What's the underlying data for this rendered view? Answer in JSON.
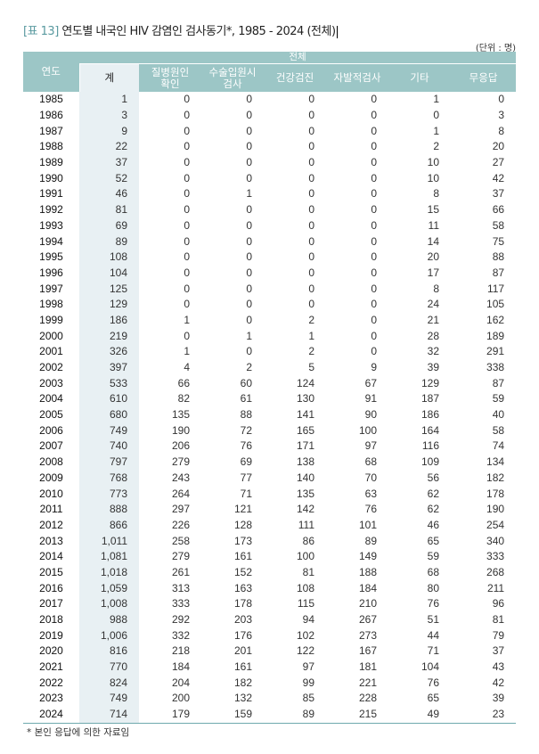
{
  "title": {
    "tag": "[표 13]",
    "text": "연도별 내국인 HIV 감염인 검사동기*, 1985 - 2024 (전체)"
  },
  "unit": "(단위 : 명)",
  "header": {
    "year": "연도",
    "group": "전체",
    "columns": [
      "계",
      "질병원인\n확인",
      "수술입원시\n검사",
      "건강검진",
      "자발적검사",
      "기타",
      "무응답"
    ]
  },
  "rows": [
    [
      "1985",
      "1",
      "0",
      "0",
      "0",
      "0",
      "1",
      "0"
    ],
    [
      "1986",
      "3",
      "0",
      "0",
      "0",
      "0",
      "0",
      "3"
    ],
    [
      "1987",
      "9",
      "0",
      "0",
      "0",
      "0",
      "1",
      "8"
    ],
    [
      "1988",
      "22",
      "0",
      "0",
      "0",
      "0",
      "2",
      "20"
    ],
    [
      "1989",
      "37",
      "0",
      "0",
      "0",
      "0",
      "10",
      "27"
    ],
    [
      "1990",
      "52",
      "0",
      "0",
      "0",
      "0",
      "10",
      "42"
    ],
    [
      "1991",
      "46",
      "0",
      "1",
      "0",
      "0",
      "8",
      "37"
    ],
    [
      "1992",
      "81",
      "0",
      "0",
      "0",
      "0",
      "15",
      "66"
    ],
    [
      "1993",
      "69",
      "0",
      "0",
      "0",
      "0",
      "11",
      "58"
    ],
    [
      "1994",
      "89",
      "0",
      "0",
      "0",
      "0",
      "14",
      "75"
    ],
    [
      "1995",
      "108",
      "0",
      "0",
      "0",
      "0",
      "20",
      "88"
    ],
    [
      "1996",
      "104",
      "0",
      "0",
      "0",
      "0",
      "17",
      "87"
    ],
    [
      "1997",
      "125",
      "0",
      "0",
      "0",
      "0",
      "8",
      "117"
    ],
    [
      "1998",
      "129",
      "0",
      "0",
      "0",
      "0",
      "24",
      "105"
    ],
    [
      "1999",
      "186",
      "1",
      "0",
      "2",
      "0",
      "21",
      "162"
    ],
    [
      "2000",
      "219",
      "0",
      "1",
      "1",
      "0",
      "28",
      "189"
    ],
    [
      "2001",
      "326",
      "1",
      "0",
      "2",
      "0",
      "32",
      "291"
    ],
    [
      "2002",
      "397",
      "4",
      "2",
      "5",
      "9",
      "39",
      "338"
    ],
    [
      "2003",
      "533",
      "66",
      "60",
      "124",
      "67",
      "129",
      "87"
    ],
    [
      "2004",
      "610",
      "82",
      "61",
      "130",
      "91",
      "187",
      "59"
    ],
    [
      "2005",
      "680",
      "135",
      "88",
      "141",
      "90",
      "186",
      "40"
    ],
    [
      "2006",
      "749",
      "190",
      "72",
      "165",
      "100",
      "164",
      "58"
    ],
    [
      "2007",
      "740",
      "206",
      "76",
      "171",
      "97",
      "116",
      "74"
    ],
    [
      "2008",
      "797",
      "279",
      "69",
      "138",
      "68",
      "109",
      "134"
    ],
    [
      "2009",
      "768",
      "243",
      "77",
      "140",
      "70",
      "56",
      "182"
    ],
    [
      "2010",
      "773",
      "264",
      "71",
      "135",
      "63",
      "62",
      "178"
    ],
    [
      "2011",
      "888",
      "297",
      "121",
      "142",
      "76",
      "62",
      "190"
    ],
    [
      "2012",
      "866",
      "226",
      "128",
      "111",
      "101",
      "46",
      "254"
    ],
    [
      "2013",
      "1,011",
      "258",
      "173",
      "86",
      "89",
      "65",
      "340"
    ],
    [
      "2014",
      "1,081",
      "279",
      "161",
      "100",
      "149",
      "59",
      "333"
    ],
    [
      "2015",
      "1,018",
      "261",
      "152",
      "81",
      "188",
      "68",
      "268"
    ],
    [
      "2016",
      "1,059",
      "313",
      "163",
      "108",
      "184",
      "80",
      "211"
    ],
    [
      "2017",
      "1,008",
      "333",
      "178",
      "115",
      "210",
      "76",
      "96"
    ],
    [
      "2018",
      "988",
      "292",
      "203",
      "94",
      "267",
      "51",
      "81"
    ],
    [
      "2019",
      "1,006",
      "332",
      "176",
      "102",
      "273",
      "44",
      "79"
    ],
    [
      "2020",
      "816",
      "218",
      "201",
      "122",
      "167",
      "71",
      "37"
    ],
    [
      "2021",
      "770",
      "184",
      "161",
      "97",
      "181",
      "104",
      "43"
    ],
    [
      "2022",
      "824",
      "204",
      "182",
      "99",
      "221",
      "76",
      "42"
    ],
    [
      "2023",
      "749",
      "200",
      "132",
      "85",
      "228",
      "65",
      "39"
    ],
    [
      "2024",
      "714",
      "179",
      "159",
      "89",
      "215",
      "49",
      "23"
    ]
  ],
  "footnote": "* 본인 응답에 의한 자료임",
  "colors": {
    "header": "#9cc6c6",
    "total_column": "#e8f0f3",
    "title_tag": "#5a9aa0"
  }
}
